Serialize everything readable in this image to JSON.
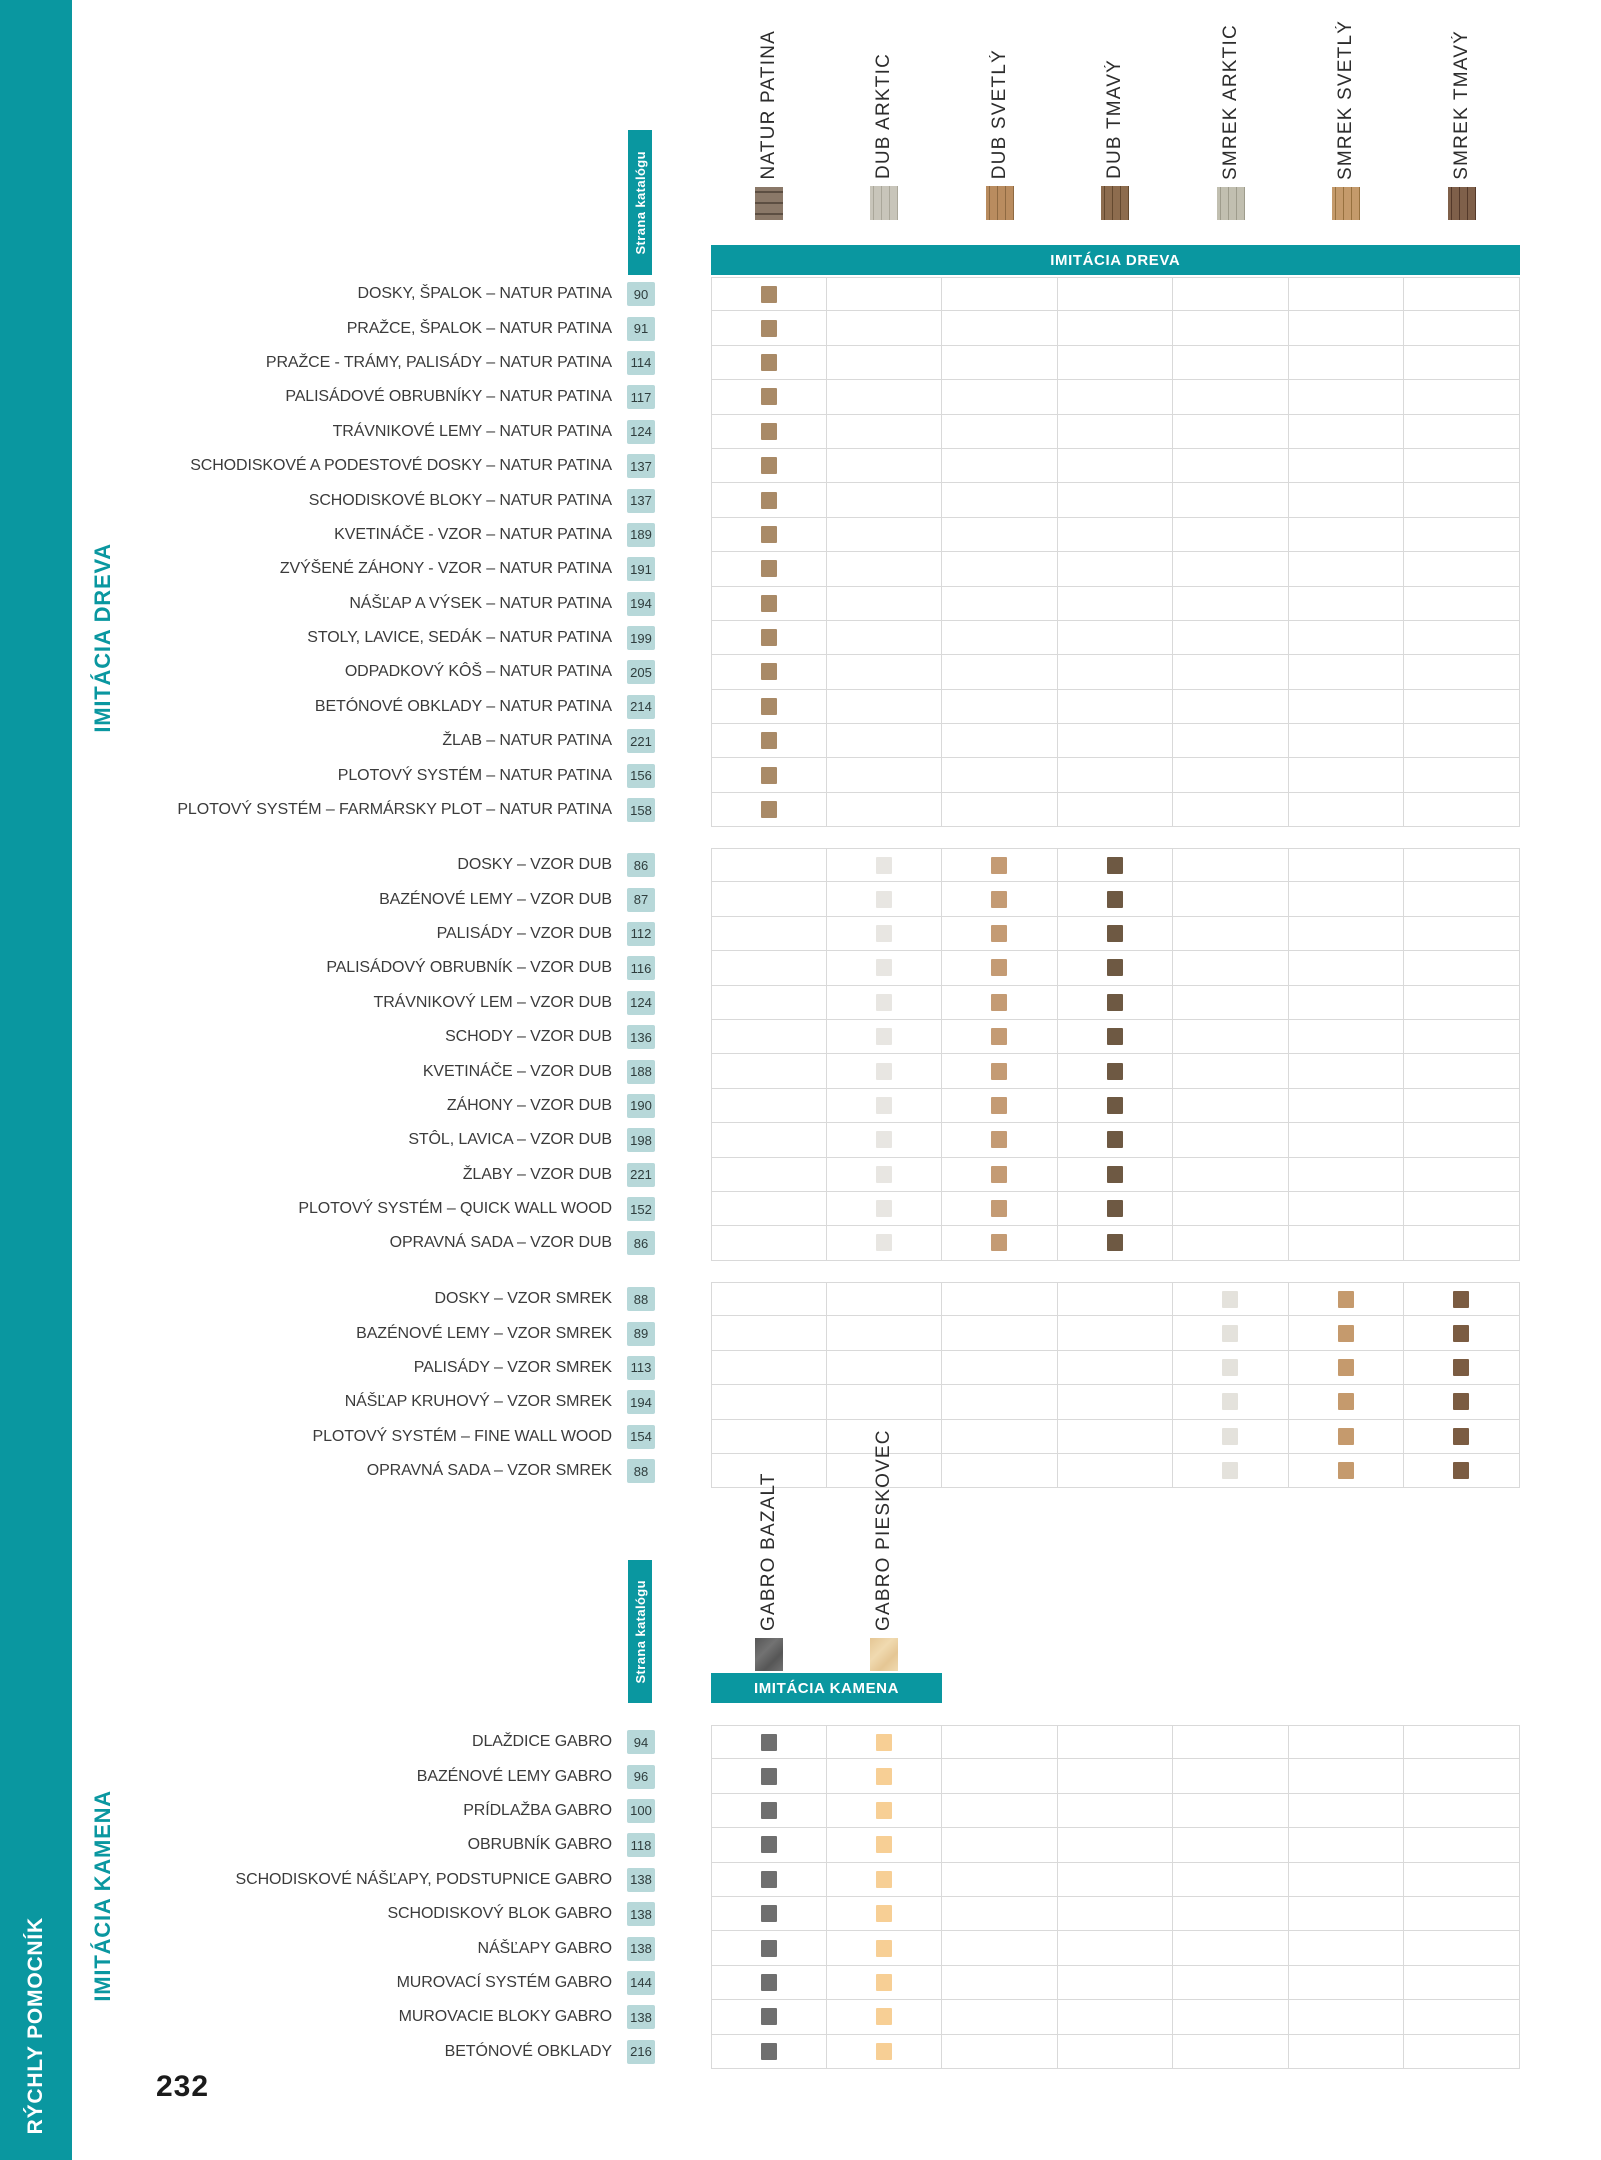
{
  "page": {
    "number": "232",
    "sidebar_label": "RÝCHLY POMOCNÍK"
  },
  "colors": {
    "teal": "#0a97a0",
    "badge_bg": "#b7d8d9",
    "grid_border": "#d9d9d9"
  },
  "wood": {
    "side_label": "IMITÁCIA DREVA",
    "band_label": "IMITÁCIA DREVA",
    "catalog_label": "Strana katalógu",
    "columns": [
      {
        "label": "NATUR PATINA",
        "dot_color": "#a98a67",
        "swatch_base": "#8a7868",
        "swatch_grain": "#5c4e42",
        "grain": "horizontal"
      },
      {
        "label": "DUB ARKTIC",
        "dot_color": "#e8e6e2",
        "swatch_base": "#c8c5ba",
        "swatch_grain": "#aaa79a",
        "grain": "vertical"
      },
      {
        "label": "DUB SVETLÝ",
        "dot_color": "#c49b74",
        "swatch_base": "#b98c5f",
        "swatch_grain": "#8f6a42",
        "grain": "vertical"
      },
      {
        "label": "DUB TMAVÝ",
        "dot_color": "#6e5943",
        "swatch_base": "#8d6c4e",
        "swatch_grain": "#64492f",
        "grain": "vertical"
      },
      {
        "label": "SMREK ARKTIC",
        "dot_color": "#e4e2dc",
        "swatch_base": "#c1bfb0",
        "swatch_grain": "#9e9c8c",
        "grain": "vertical"
      },
      {
        "label": "SMREK SVETLÝ",
        "dot_color": "#c59a6d",
        "swatch_base": "#c49a6b",
        "swatch_grain": "#97713f",
        "grain": "vertical"
      },
      {
        "label": "SMREK TMAVÝ",
        "dot_color": "#7b5c42",
        "swatch_base": "#7f604a",
        "swatch_grain": "#54392a",
        "grain": "vertical"
      }
    ],
    "sections": [
      {
        "rows": [
          {
            "label": "DOSKY, ŠPALOK – NATUR PATINA",
            "page": "90",
            "dots": [
              0
            ]
          },
          {
            "label": "PRAŽCE, ŠPALOK – NATUR PATINA",
            "page": "91",
            "dots": [
              0
            ]
          },
          {
            "label": "PRAŽCE - TRÁMY, PALISÁDY – NATUR PATINA",
            "page": "114",
            "dots": [
              0
            ]
          },
          {
            "label": "PALISÁDOVÉ OBRUBNÍKY – NATUR PATINA",
            "page": "117",
            "dots": [
              0
            ]
          },
          {
            "label": "TRÁVNIKOVÉ LEMY – NATUR PATINA",
            "page": "124",
            "dots": [
              0
            ]
          },
          {
            "label": "SCHODISKOVÉ A PODESTOVÉ DOSKY – NATUR PATINA",
            "page": "137",
            "dots": [
              0
            ]
          },
          {
            "label": "SCHODISKOVÉ BLOKY – NATUR PATINA",
            "page": "137",
            "dots": [
              0
            ]
          },
          {
            "label": "KVETINÁČE - VZOR – NATUR PATINA",
            "page": "189",
            "dots": [
              0
            ]
          },
          {
            "label": "ZVÝŠENÉ ZÁHONY - VZOR – NATUR PATINA",
            "page": "191",
            "dots": [
              0
            ]
          },
          {
            "label": "NÁŠĽAP A VÝSEK – NATUR PATINA",
            "page": "194",
            "dots": [
              0
            ]
          },
          {
            "label": "STOLY, LAVICE, SEDÁK – NATUR PATINA",
            "page": "199",
            "dots": [
              0
            ]
          },
          {
            "label": "ODPADKOVÝ KÔŠ – NATUR PATINA",
            "page": "205",
            "dots": [
              0
            ]
          },
          {
            "label": "BETÓNOVÉ OBKLADY – NATUR PATINA",
            "page": "214",
            "dots": [
              0
            ]
          },
          {
            "label": "ŽLAB – NATUR PATINA",
            "page": "221",
            "dots": [
              0
            ]
          },
          {
            "label": "PLOTOVÝ SYSTÉM – NATUR PATINA",
            "page": "156",
            "dots": [
              0
            ]
          },
          {
            "label": "PLOTOVÝ SYSTÉM – FARMÁRSKY PLOT – NATUR PATINA",
            "page": "158",
            "dots": [
              0
            ]
          }
        ]
      },
      {
        "rows": [
          {
            "label": "DOSKY – VZOR DUB",
            "page": "86",
            "dots": [
              1,
              2,
              3
            ]
          },
          {
            "label": "BAZÉNOVÉ LEMY – VZOR DUB",
            "page": "87",
            "dots": [
              1,
              2,
              3
            ]
          },
          {
            "label": "PALISÁDY – VZOR DUB",
            "page": "112",
            "dots": [
              1,
              2,
              3
            ]
          },
          {
            "label": "PALISÁDOVÝ OBRUBNÍK – VZOR DUB",
            "page": "116",
            "dots": [
              1,
              2,
              3
            ]
          },
          {
            "label": "TRÁVNIKOVÝ LEM – VZOR DUB",
            "page": "124",
            "dots": [
              1,
              2,
              3
            ]
          },
          {
            "label": "SCHODY – VZOR DUB",
            "page": "136",
            "dots": [
              1,
              2,
              3
            ]
          },
          {
            "label": "KVETINÁČE – VZOR DUB",
            "page": "188",
            "dots": [
              1,
              2,
              3
            ]
          },
          {
            "label": "ZÁHONY – VZOR DUB",
            "page": "190",
            "dots": [
              1,
              2,
              3
            ]
          },
          {
            "label": "STÔL, LAVICA – VZOR DUB",
            "page": "198",
            "dots": [
              1,
              2,
              3
            ]
          },
          {
            "label": "ŽLABY – VZOR DUB",
            "page": "221",
            "dots": [
              1,
              2,
              3
            ]
          },
          {
            "label": "PLOTOVÝ SYSTÉM – QUICK WALL WOOD",
            "page": "152",
            "dots": [
              1,
              2,
              3
            ]
          },
          {
            "label": "OPRAVNÁ SADA – VZOR DUB",
            "page": "86",
            "dots": [
              1,
              2,
              3
            ]
          }
        ]
      },
      {
        "rows": [
          {
            "label": "DOSKY – VZOR SMREK",
            "page": "88",
            "dots": [
              4,
              5,
              6
            ]
          },
          {
            "label": "BAZÉNOVÉ LEMY – VZOR SMREK",
            "page": "89",
            "dots": [
              4,
              5,
              6
            ]
          },
          {
            "label": "PALISÁDY – VZOR SMREK",
            "page": "113",
            "dots": [
              4,
              5,
              6
            ]
          },
          {
            "label": "NÁŠĽAP KRUHOVÝ – VZOR SMREK",
            "page": "194",
            "dots": [
              4,
              5,
              6
            ]
          },
          {
            "label": "PLOTOVÝ SYSTÉM – FINE WALL WOOD",
            "page": "154",
            "dots": [
              4,
              5,
              6
            ]
          },
          {
            "label": "OPRAVNÁ SADA – VZOR SMREK",
            "page": "88",
            "dots": [
              4,
              5,
              6
            ]
          }
        ]
      }
    ]
  },
  "stone": {
    "side_label": "IMITÁCIA KAMENA",
    "band_label": "IMITÁCIA KAMENA",
    "catalog_label": "Strana katalógu",
    "grid_columns": 7,
    "columns": [
      {
        "label": "GABRO BAZALT",
        "dot_color": "#6f6f6f",
        "swatch_base": "#727272",
        "swatch_grain": "#565656",
        "grain": "stone"
      },
      {
        "label": "GABRO PIESKOVEC",
        "dot_color": "#f7cf95",
        "swatch_base": "#f0dab0",
        "swatch_grain": "#e5c694",
        "grain": "stone"
      }
    ],
    "rows": [
      {
        "label": "DLAŽDICE GABRO",
        "page": "94",
        "dots": [
          0,
          1
        ]
      },
      {
        "label": "BAZÉNOVÉ LEMY GABRO",
        "page": "96",
        "dots": [
          0,
          1
        ]
      },
      {
        "label": "PRÍDLAŽBA GABRO",
        "page": "100",
        "dots": [
          0,
          1
        ]
      },
      {
        "label": "OBRUBNÍK GABRO",
        "page": "118",
        "dots": [
          0,
          1
        ]
      },
      {
        "label": "SCHODISKOVÉ NÁŠĽAPY, PODSTUPNICE GABRO",
        "page": "138",
        "dots": [
          0,
          1
        ]
      },
      {
        "label": "SCHODISKOVÝ BLOK GABRO",
        "page": "138",
        "dots": [
          0,
          1
        ]
      },
      {
        "label": "NÁŠĽAPY GABRO",
        "page": "138",
        "dots": [
          0,
          1
        ]
      },
      {
        "label": "MUROVACÍ SYSTÉM GABRO",
        "page": "144",
        "dots": [
          0,
          1
        ]
      },
      {
        "label": "MUROVACIE BLOKY GABRO",
        "page": "138",
        "dots": [
          0,
          1
        ]
      },
      {
        "label": "BETÓNOVÉ OBKLADY",
        "page": "216",
        "dots": [
          0,
          1
        ]
      }
    ]
  }
}
